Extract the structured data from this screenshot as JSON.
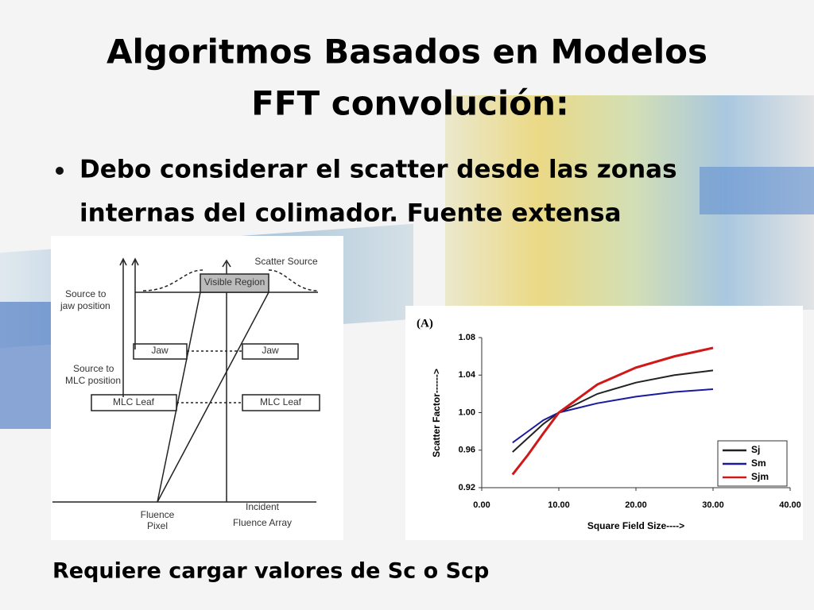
{
  "title": [
    "Algoritmos Basados en Modelos",
    "FFT convolución:"
  ],
  "bullets": [
    "Debo considerar el scatter desde las zonas",
    "internas del colimador. Fuente extensa"
  ],
  "diagram": {
    "scatter_source": "Scatter Source",
    "visible_region": "Visible Region",
    "source_to_jaw": [
      "Source to",
      "jaw position"
    ],
    "jaw_left": "Jaw",
    "jaw_right": "Jaw",
    "source_to_mlc": [
      "Source to",
      "MLC position"
    ],
    "mlc_left": "MLC Leaf",
    "mlc_right": "MLC Leaf",
    "fluence_pixel": [
      "Fluence",
      "Pixel"
    ],
    "fluence_array": [
      "Incident",
      "Fluence Array"
    ]
  },
  "chart_data": {
    "type": "line",
    "panel_label": "(A)",
    "x_label": "Square Field Size---->",
    "y_label": "Scatter Factor------>",
    "x": [
      4,
      6,
      8,
      10,
      15,
      20,
      25,
      30
    ],
    "series": [
      {
        "name": "Sj",
        "color": "#222222",
        "values": [
          0.958,
          0.973,
          0.988,
          1.0,
          1.02,
          1.032,
          1.04,
          1.045
        ]
      },
      {
        "name": "Sm",
        "color": "#1a1aa0",
        "values": [
          0.968,
          0.98,
          0.992,
          1.0,
          1.01,
          1.017,
          1.022,
          1.025
        ]
      },
      {
        "name": "Sjm",
        "color": "#d01818",
        "values": [
          0.934,
          0.955,
          0.978,
          1.0,
          1.03,
          1.048,
          1.06,
          1.069
        ]
      }
    ],
    "xlim": [
      0,
      40
    ],
    "ylim": [
      0.92,
      1.08
    ],
    "xticks": [
      {
        "value": 0,
        "label": "0.00"
      },
      {
        "value": 10,
        "label": "10.00"
      },
      {
        "value": 20,
        "label": "20.00"
      },
      {
        "value": 30,
        "label": "30.00"
      },
      {
        "value": 40,
        "label": "40.00"
      }
    ],
    "yticks": [
      0.92,
      0.96,
      {
        "value": 1.0,
        "label": "1.00"
      },
      1.04,
      1.08
    ],
    "legend": "lower right",
    "grid": false
  },
  "footer": "Requiere cargar valores de Sc o Scp"
}
